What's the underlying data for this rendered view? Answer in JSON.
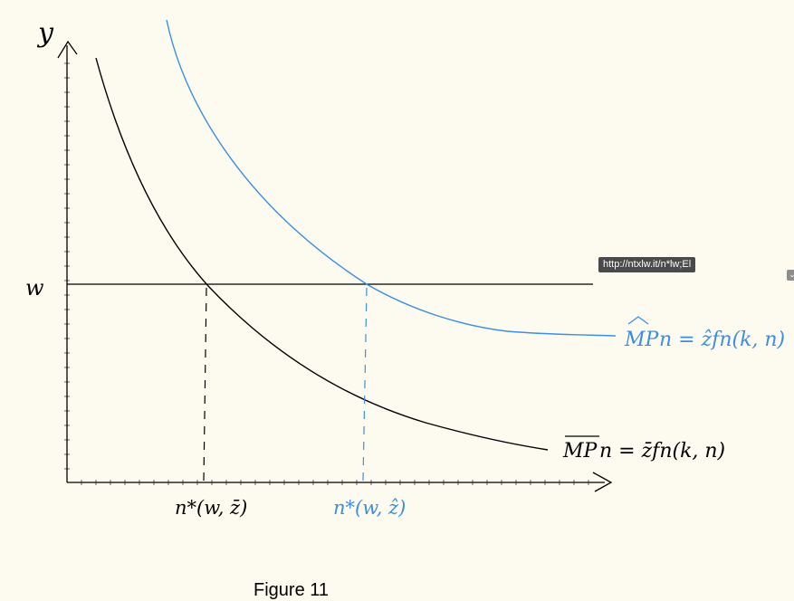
{
  "diagram": {
    "y_axis_label": "y",
    "wage_label": "w",
    "curve_black_label": "MPn = z̄fn(k, n)",
    "curve_black_label_overline": "MP",
    "curve_black_label_rest": "n = z̄fn(k, n)",
    "curve_blue_label_hat": "MP",
    "curve_blue_label_rest": "n = ẑfn(k, n)",
    "n_star_black_label": "n*(w, z̄)",
    "n_star_blue_label": "n*(w, ẑ)",
    "colors": {
      "ink": "#000000",
      "blue": "#3b8ee0",
      "background": "#fdfbf0"
    }
  },
  "tooltip": {
    "text": "http://ntxlw.it/n*lw;El"
  },
  "caption": {
    "text": "Figure 11"
  },
  "icons": {
    "chevron": "chevron-down-icon"
  }
}
